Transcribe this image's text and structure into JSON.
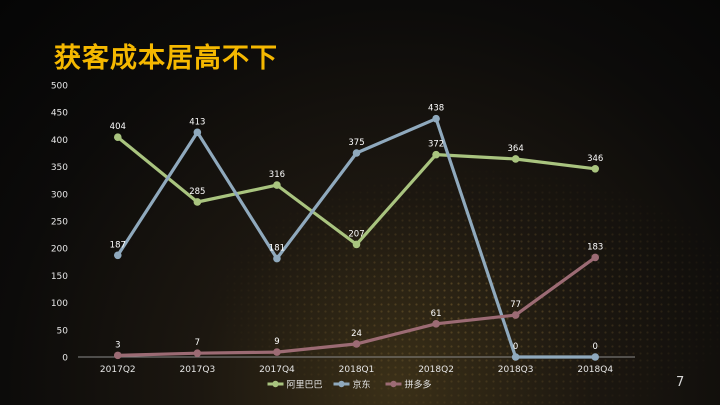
{
  "slide": {
    "title": "获客成本居高不下",
    "page_number": "7"
  },
  "chart_data": {
    "type": "line",
    "title": "",
    "xlabel": "",
    "ylabel": "",
    "ylim": [
      0,
      500
    ],
    "yticks": [
      0,
      50,
      100,
      150,
      200,
      250,
      300,
      350,
      400,
      450,
      500
    ],
    "categories": [
      "2017Q2",
      "2017Q3",
      "2017Q4",
      "2018Q1",
      "2018Q2",
      "2018Q3",
      "2018Q4"
    ],
    "legend_position": "bottom",
    "grid": false,
    "series": [
      {
        "name": "阿里巴巴",
        "color": "#a9c47f",
        "values": [
          404,
          285,
          316,
          207,
          372,
          364,
          346
        ]
      },
      {
        "name": "京东",
        "color": "#8fa9bd",
        "values": [
          187,
          413,
          181,
          375,
          438,
          0,
          0
        ]
      },
      {
        "name": "拼多多",
        "color": "#9c6b74",
        "values": [
          3,
          7,
          9,
          24,
          61,
          77,
          183
        ]
      }
    ]
  }
}
